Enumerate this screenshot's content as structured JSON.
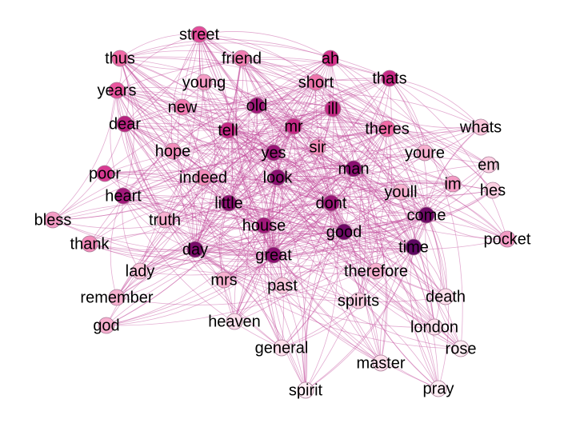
{
  "graph": {
    "nodes": [
      {
        "id": "street",
        "label": "street",
        "color": "#e44c9a"
      },
      {
        "id": "thus",
        "label": "thus",
        "color": "#f06aa6"
      },
      {
        "id": "friend",
        "label": "friend",
        "color": "#f07eb2"
      },
      {
        "id": "ah",
        "label": "ah",
        "color": "#d6318c"
      },
      {
        "id": "young",
        "label": "young",
        "color": "#f39bc4"
      },
      {
        "id": "years",
        "label": "years",
        "color": "#e9559e"
      },
      {
        "id": "short",
        "label": "short",
        "color": "#ee74ac"
      },
      {
        "id": "thats",
        "label": "thats",
        "color": "#c62a86"
      },
      {
        "id": "new",
        "label": "new",
        "color": "#f07ab0"
      },
      {
        "id": "old",
        "label": "old",
        "color": "#a0197a"
      },
      {
        "id": "ill",
        "label": "ill",
        "color": "#c52a86"
      },
      {
        "id": "dear",
        "label": "dear",
        "color": "#b7227f"
      },
      {
        "id": "tell",
        "label": "tell",
        "color": "#c52a86"
      },
      {
        "id": "mr",
        "label": "mr",
        "color": "#c62a86"
      },
      {
        "id": "theres",
        "label": "theres",
        "color": "#f06aa6"
      },
      {
        "id": "whats",
        "label": "whats",
        "color": "#fbc7dc"
      },
      {
        "id": "hope",
        "label": "hope",
        "color": "#f28cba"
      },
      {
        "id": "yes",
        "label": "yes",
        "color": "#9a1677"
      },
      {
        "id": "sir",
        "label": "sir",
        "color": "#f28cba"
      },
      {
        "id": "youre",
        "label": "youre",
        "color": "#f7b0cf"
      },
      {
        "id": "em",
        "label": "em",
        "color": "#fbd0e2"
      },
      {
        "id": "poor",
        "label": "poor",
        "color": "#d83a92"
      },
      {
        "id": "indeed",
        "label": "indeed",
        "color": "#f28cba"
      },
      {
        "id": "look",
        "label": "look",
        "color": "#8a0f70"
      },
      {
        "id": "man",
        "label": "man",
        "color": "#8a0f70"
      },
      {
        "id": "im",
        "label": "im",
        "color": "#f39bc4"
      },
      {
        "id": "hes",
        "label": "hes",
        "color": "#fbd0e2"
      },
      {
        "id": "heart",
        "label": "heart",
        "color": "#a0197a"
      },
      {
        "id": "youll",
        "label": "youll",
        "color": "#f7b0cf"
      },
      {
        "id": "little",
        "label": "little",
        "color": "#8a0f70"
      },
      {
        "id": "dont",
        "label": "dont",
        "color": "#9a1677"
      },
      {
        "id": "come",
        "label": "come",
        "color": "#6e0a66"
      },
      {
        "id": "bless",
        "label": "bless",
        "color": "#f39bc4"
      },
      {
        "id": "truth",
        "label": "truth",
        "color": "#f7b0cf"
      },
      {
        "id": "house",
        "label": "house",
        "color": "#a0197a"
      },
      {
        "id": "good",
        "label": "good",
        "color": "#6e0a66"
      },
      {
        "id": "pocket",
        "label": "pocket",
        "color": "#f39bc4"
      },
      {
        "id": "thank",
        "label": "thank",
        "color": "#f28cba"
      },
      {
        "id": "day",
        "label": "day",
        "color": "#7a0d6a"
      },
      {
        "id": "great",
        "label": "great",
        "color": "#8a0f70"
      },
      {
        "id": "time",
        "label": "time",
        "color": "#5f0863"
      },
      {
        "id": "lady",
        "label": "lady",
        "color": "#fbc7dc"
      },
      {
        "id": "mrs",
        "label": "mrs",
        "color": "#f7b0cf"
      },
      {
        "id": "therefore",
        "label": "therefore",
        "color": "#f7b0cf"
      },
      {
        "id": "past",
        "label": "past",
        "color": "#fbc7dc"
      },
      {
        "id": "remember",
        "label": "remember",
        "color": "#f7b0cf"
      },
      {
        "id": "spirits",
        "label": "spirits",
        "color": "#fbd0e2"
      },
      {
        "id": "death",
        "label": "death",
        "color": "#fde0ec"
      },
      {
        "id": "god",
        "label": "god",
        "color": "#f7b0cf"
      },
      {
        "id": "heaven",
        "label": "heaven",
        "color": "#fde0ec"
      },
      {
        "id": "london",
        "label": "london",
        "color": "#fde0ec"
      },
      {
        "id": "general",
        "label": "general",
        "color": "#fde0ec"
      },
      {
        "id": "rose",
        "label": "rose",
        "color": "#ffeef4"
      },
      {
        "id": "master",
        "label": "master",
        "color": "#fde0ec"
      },
      {
        "id": "spirit",
        "label": "spirit",
        "color": "#ffeef4"
      },
      {
        "id": "pray",
        "label": "pray",
        "color": "#ffeef4"
      }
    ],
    "edge_color": "#c0479a"
  }
}
